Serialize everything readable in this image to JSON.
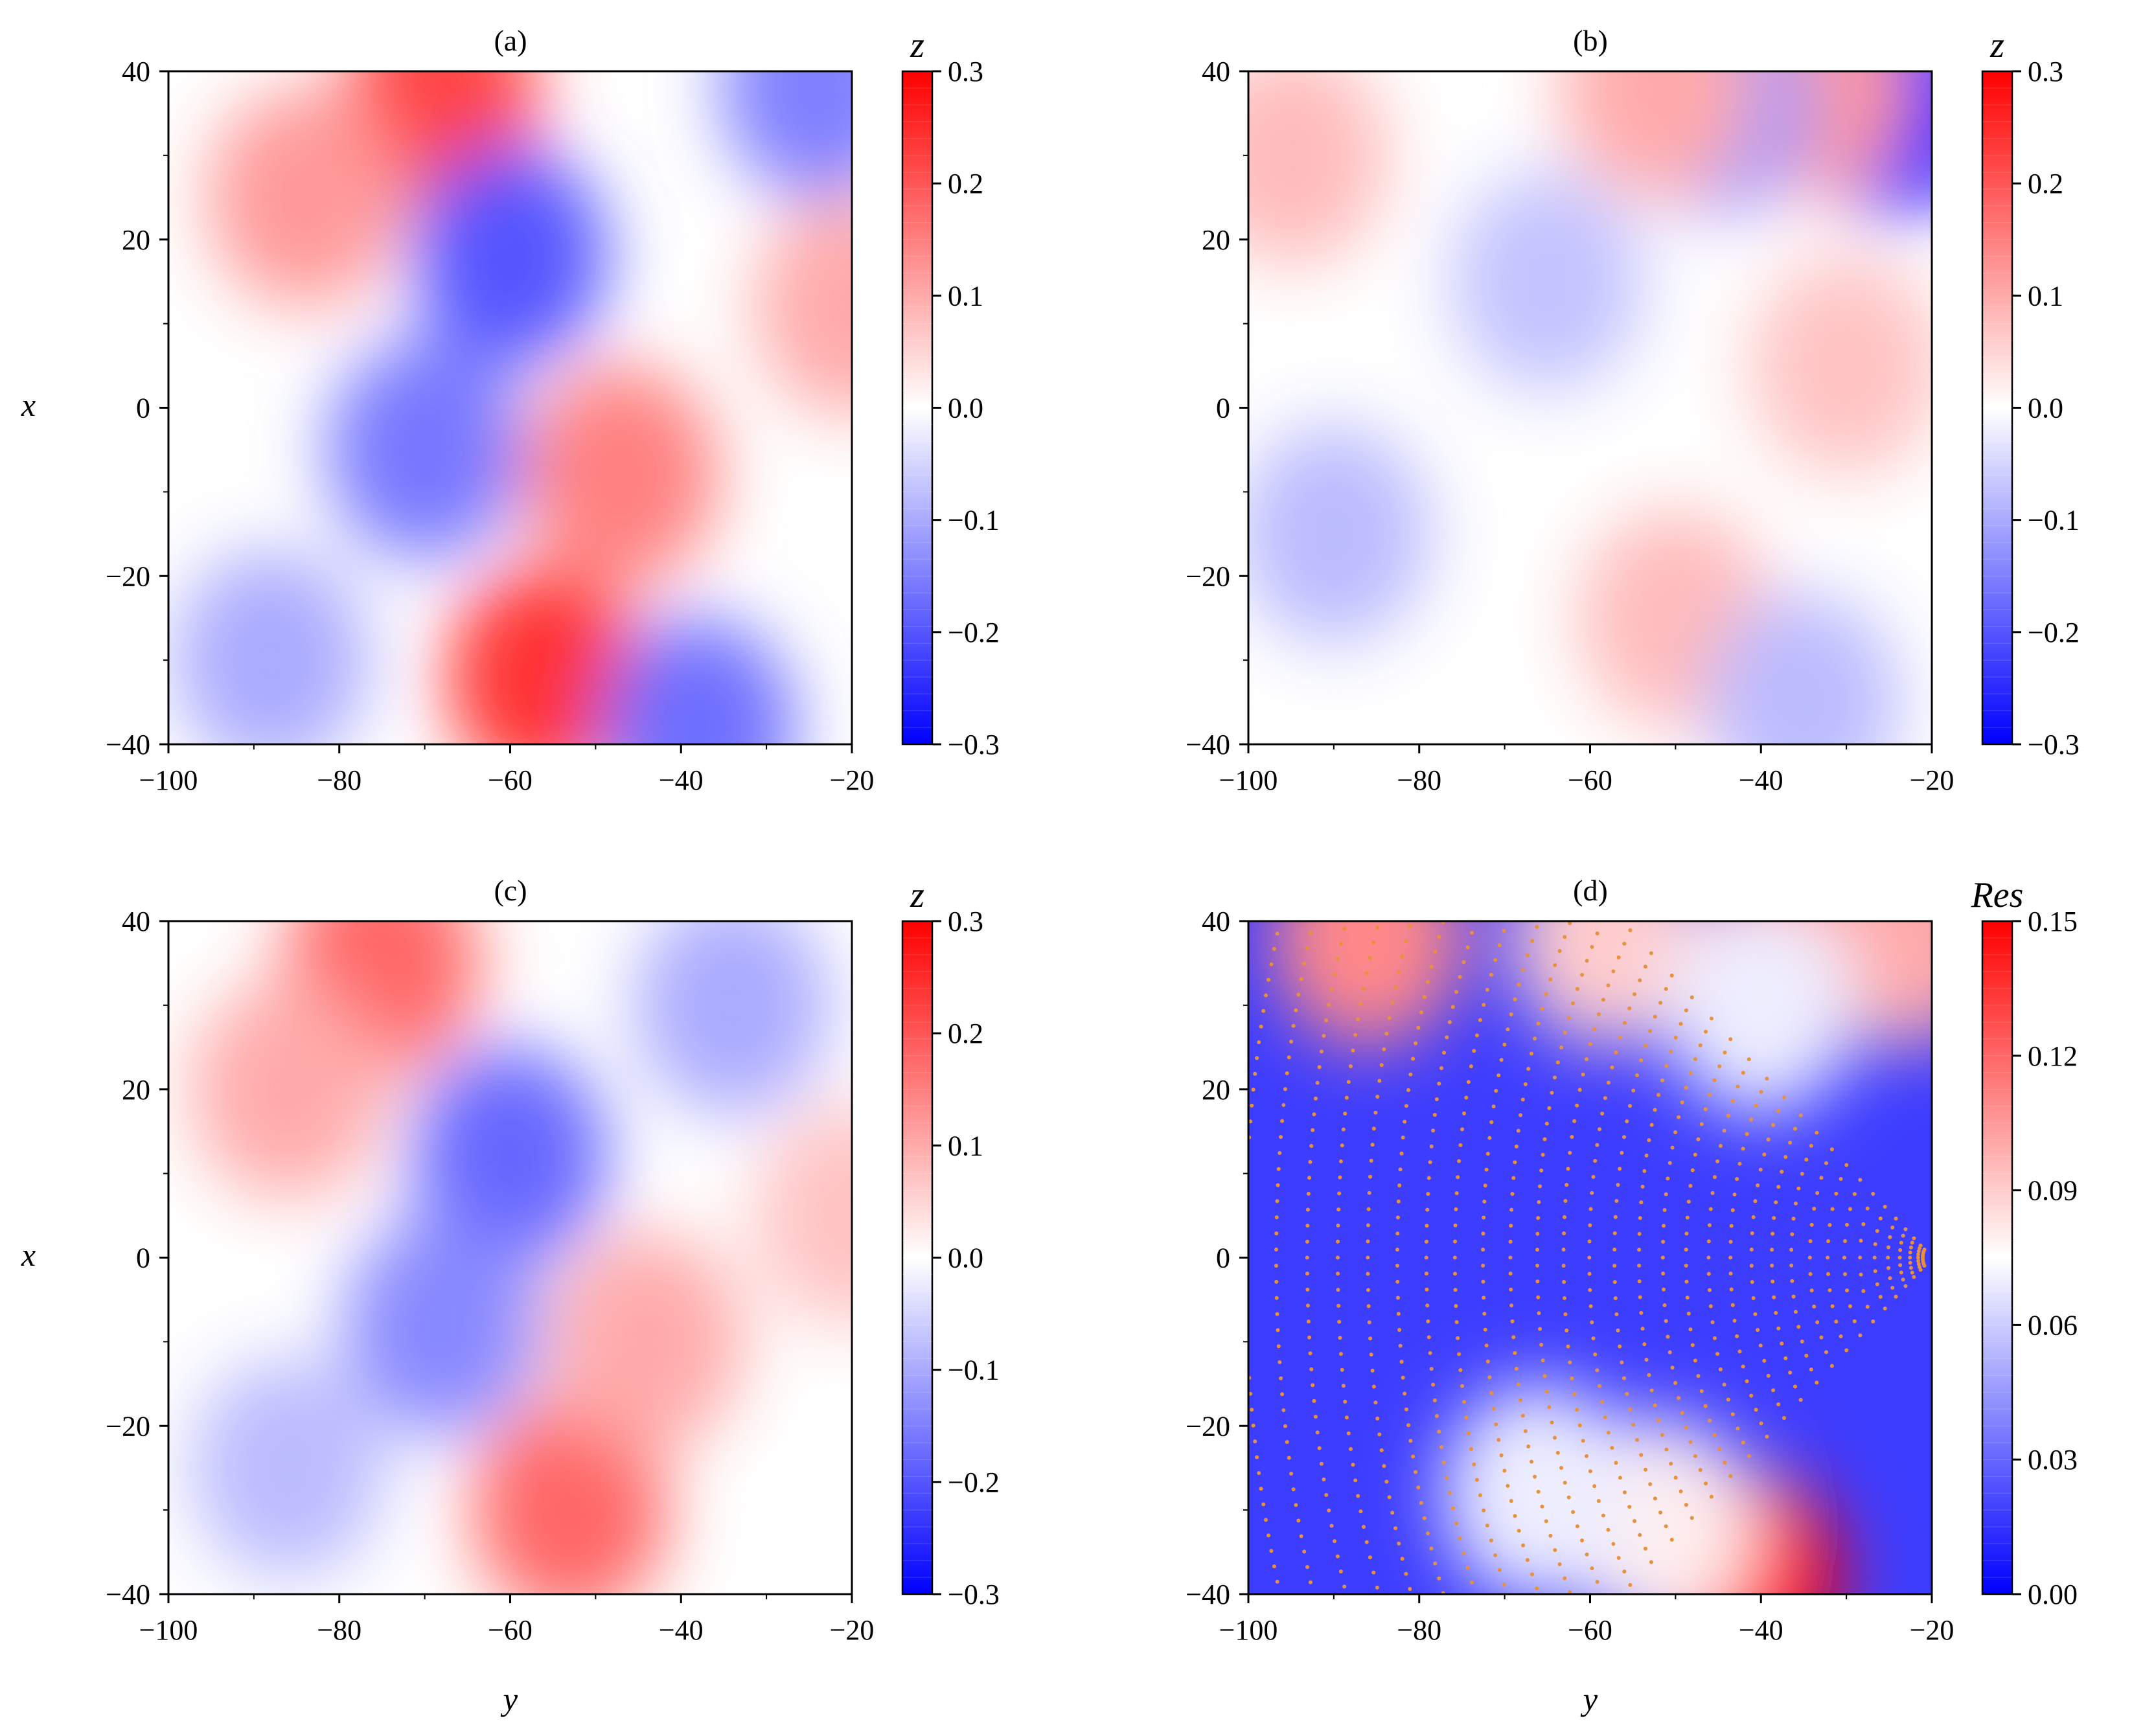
{
  "chart_data": [
    {
      "type": "heatmap",
      "title": "(a)",
      "xlabel": "",
      "ylabel": "x",
      "xlim": [
        -100,
        -20
      ],
      "ylim": [
        -40,
        40
      ],
      "xticks": [
        "−100",
        "−80",
        "−60",
        "−40",
        "−20"
      ],
      "yticks": [
        "40",
        "20",
        "0",
        "−20",
        "−40"
      ],
      "colorbar": {
        "label": "z",
        "range": [
          -0.3,
          0.3
        ],
        "ticks": [
          "0.3",
          "0.2",
          "0.1",
          "0.0",
          "−0.1",
          "−0.2",
          "−0.3"
        ],
        "colors": [
          "#0000ff",
          "#ffffff",
          "#ff0000"
        ]
      },
      "features": [
        {
          "y": -68,
          "x": 37,
          "z": 0.22
        },
        {
          "y": -84,
          "x": 25,
          "z": 0.12
        },
        {
          "y": -60,
          "x": 18,
          "z": -0.2
        },
        {
          "y": -70,
          "x": -5,
          "z": -0.16
        },
        {
          "y": -56,
          "x": -32,
          "z": 0.24
        },
        {
          "y": -47,
          "x": -8,
          "z": 0.15
        },
        {
          "y": -88,
          "x": -30,
          "z": -0.1
        },
        {
          "y": -38,
          "x": -38,
          "z": -0.17
        },
        {
          "y": -24,
          "x": 38,
          "z": -0.15
        },
        {
          "y": -20,
          "x": 12,
          "z": 0.1
        }
      ]
    },
    {
      "type": "heatmap",
      "title": "(b)",
      "xlabel": "",
      "ylabel": "",
      "xlim": [
        -100,
        -20
      ],
      "ylim": [
        -40,
        40
      ],
      "xticks": [
        "−100",
        "−80",
        "−60",
        "−40",
        "−20"
      ],
      "yticks": [
        "40",
        "20",
        "0",
        "−20",
        "−40"
      ],
      "colorbar": {
        "label": "z",
        "range": [
          -0.3,
          0.3
        ],
        "ticks": [
          "0.3",
          "0.2",
          "0.1",
          "0.0",
          "−0.1",
          "−0.2",
          "−0.3"
        ],
        "colors": [
          "#0000ff",
          "#ffffff",
          "#ff0000"
        ]
      },
      "features": [
        {
          "y": -95,
          "x": 30,
          "z": 0.08
        },
        {
          "y": -90,
          "x": -15,
          "z": -0.08
        },
        {
          "y": -65,
          "x": 15,
          "z": -0.07
        },
        {
          "y": -50,
          "x": -25,
          "z": 0.08
        },
        {
          "y": -30,
          "x": 5,
          "z": 0.07
        },
        {
          "y": -24,
          "x": 36,
          "z": -0.3
        },
        {
          "y": -34,
          "x": 38,
          "z": 0.12
        },
        {
          "y": -45,
          "x": 36,
          "z": -0.12
        },
        {
          "y": -52,
          "x": 38,
          "z": 0.1
        },
        {
          "y": -35,
          "x": -35,
          "z": -0.08
        }
      ]
    },
    {
      "type": "heatmap",
      "title": "(c)",
      "xlabel": "y",
      "ylabel": "x",
      "xlim": [
        -100,
        -20
      ],
      "ylim": [
        -40,
        40
      ],
      "xticks": [
        "−100",
        "−80",
        "−60",
        "−40",
        "−20"
      ],
      "yticks": [
        "40",
        "20",
        "0",
        "−20",
        "−40"
      ],
      "colorbar": {
        "label": "z",
        "range": [
          -0.3,
          0.3
        ],
        "ticks": [
          "0.3",
          "0.2",
          "0.1",
          "0.0",
          "−0.1",
          "−0.2",
          "−0.3"
        ],
        "colors": [
          "#0000ff",
          "#ffffff",
          "#ff0000"
        ]
      },
      "features": [
        {
          "y": -75,
          "x": 35,
          "z": 0.18
        },
        {
          "y": -86,
          "x": 20,
          "z": 0.1
        },
        {
          "y": -60,
          "x": 12,
          "z": -0.18
        },
        {
          "y": -68,
          "x": -8,
          "z": -0.14
        },
        {
          "y": -53,
          "x": -30,
          "z": 0.18
        },
        {
          "y": -44,
          "x": -10,
          "z": 0.1
        },
        {
          "y": -86,
          "x": -25,
          "z": -0.08
        },
        {
          "y": -34,
          "x": 30,
          "z": -0.1
        },
        {
          "y": -20,
          "x": 5,
          "z": 0.07
        }
      ]
    },
    {
      "type": "heatmap",
      "title": "(d)",
      "xlabel": "y",
      "ylabel": "",
      "xlim": [
        -100,
        -20
      ],
      "ylim": [
        -40,
        40
      ],
      "xticks": [
        "−100",
        "−80",
        "−60",
        "−40",
        "−20"
      ],
      "yticks": [
        "40",
        "20",
        "0",
        "−20",
        "−40"
      ],
      "colorbar": {
        "label": "Res",
        "range": [
          0,
          0.15
        ],
        "ticks": [
          "0.15",
          "0.12",
          "0.09",
          "0.06",
          "0.03",
          "0.00"
        ],
        "colors": [
          "#0000ff",
          "#ffffff",
          "#ff0000"
        ]
      },
      "features": [
        {
          "y": -42,
          "x": -38,
          "z": 0.15
        },
        {
          "y": -86,
          "x": 38,
          "z": 0.11
        },
        {
          "y": -58,
          "x": 38,
          "z": 0.09
        },
        {
          "y": -35,
          "x": 39,
          "z": 0.12
        },
        {
          "y": -23,
          "x": 38,
          "z": 0.1
        },
        {
          "y": -52,
          "x": -32,
          "z": 0.08
        },
        {
          "y": -66,
          "x": -28,
          "z": 0.07
        },
        {
          "y": -40,
          "x": 30,
          "z": 0.07
        }
      ],
      "overlay": {
        "type": "scatter",
        "color": "#e8913a",
        "apex": [
          -20,
          0
        ],
        "arc_count": 40,
        "half_angle_deg": 35
      }
    }
  ]
}
